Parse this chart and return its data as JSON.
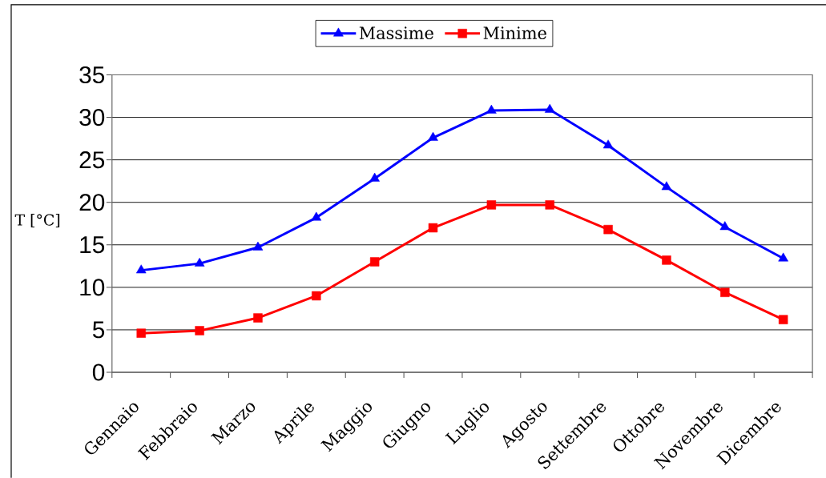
{
  "chart_data": {
    "type": "line",
    "ylabel": "T [°C]",
    "categories": [
      "Gennaio",
      "Febbraio",
      "Marzo",
      "Aprile",
      "Maggio",
      "Giugno",
      "Luglio",
      "Agosto",
      "Settembre",
      "Ottobre",
      "Novembre",
      "Dicembre"
    ],
    "series": [
      {
        "name": "Massime",
        "color": "#0000ff",
        "marker": "triangle",
        "values": [
          12.0,
          12.8,
          14.7,
          18.2,
          22.8,
          27.6,
          30.8,
          30.9,
          26.7,
          21.8,
          17.1,
          13.4
        ]
      },
      {
        "name": "Minime",
        "color": "#ff0000",
        "marker": "square",
        "values": [
          4.6,
          4.9,
          6.4,
          9.0,
          13.0,
          17.0,
          19.7,
          19.7,
          16.8,
          13.2,
          9.4,
          6.2
        ]
      }
    ],
    "ylim": [
      0,
      35
    ],
    "yticks": [
      0,
      5,
      10,
      15,
      20,
      25,
      30,
      35
    ],
    "grid": "y",
    "legend": "top"
  }
}
